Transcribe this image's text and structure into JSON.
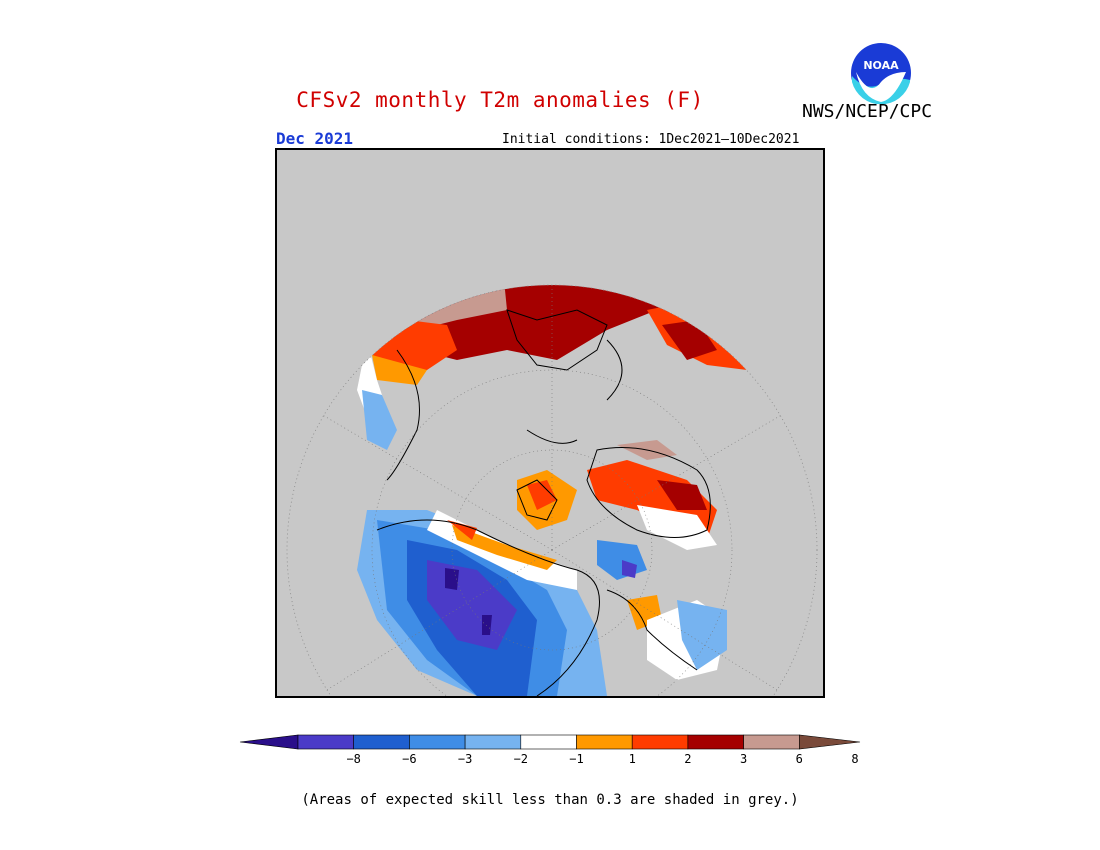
{
  "title": "CFSv2 monthly T2m anomalies (F)",
  "agency": "NWS/NCEP/CPC",
  "logo_text": "NOAA",
  "month": "Dec 2021",
  "initial_conditions": "Initial conditions: 1Dec2021—10Dec2021",
  "note": "(Areas of expected skill less than 0.3 are shaded in grey.)",
  "colorbar": {
    "labels": [
      "−8",
      "−6",
      "−3",
      "−2",
      "−1",
      "1",
      "2",
      "3",
      "6",
      "8"
    ],
    "colors": [
      "#2a0f8a",
      "#4b3bc8",
      "#1f5fcf",
      "#3f8de6",
      "#76b3f0",
      "#ffffff",
      "#ff9900",
      "#ff3c00",
      "#a50000",
      "#c79a90",
      "#7a4a3a"
    ]
  },
  "colors": {
    "mask": "#c8c8c8",
    "title": "#d00000",
    "month": "#1a3bd6"
  }
}
